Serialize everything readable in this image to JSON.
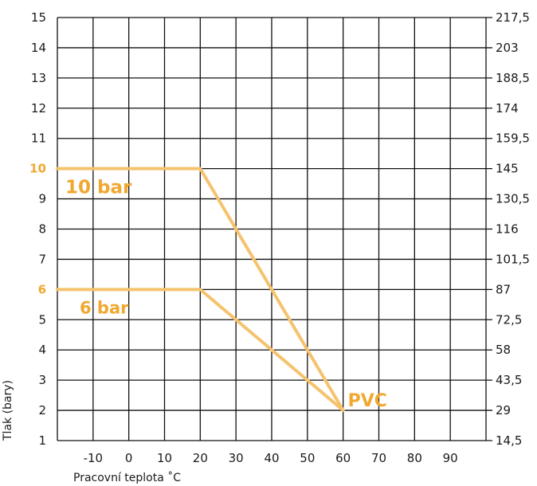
{
  "chart_data": {
    "type": "line",
    "xlabel": "Pracovní teplota ˚C",
    "ylabel": "Tlak (bary)",
    "xlim": [
      -20,
      100
    ],
    "ylim": [
      1,
      15
    ],
    "x_ticks": [
      -10,
      0,
      10,
      20,
      30,
      40,
      50,
      60,
      70,
      80,
      90
    ],
    "y_ticks": [
      1,
      2,
      3,
      4,
      5,
      6,
      7,
      8,
      9,
      10,
      11,
      12,
      13,
      14,
      15
    ],
    "y_ticks_highlighted": [
      6,
      10
    ],
    "y2_ticks": [
      "14,5",
      "29",
      "43,5",
      "58",
      "72,5",
      "87",
      "101,5",
      "116",
      "130,5",
      "145",
      "159,5",
      "174",
      "188,5",
      "203",
      "217,5"
    ],
    "grid": true,
    "line_color": "#f5c36e",
    "highlight_color": "#f0a830",
    "series": [
      {
        "name": "10 bar",
        "points": [
          [
            -20,
            10
          ],
          [
            20,
            10
          ],
          [
            60,
            2
          ]
        ]
      },
      {
        "name": "6 bar",
        "points": [
          [
            -20,
            6
          ],
          [
            20,
            6
          ],
          [
            60,
            2
          ]
        ]
      }
    ],
    "annotations": [
      {
        "text": "PVC",
        "x": 60,
        "y": 2
      }
    ]
  }
}
